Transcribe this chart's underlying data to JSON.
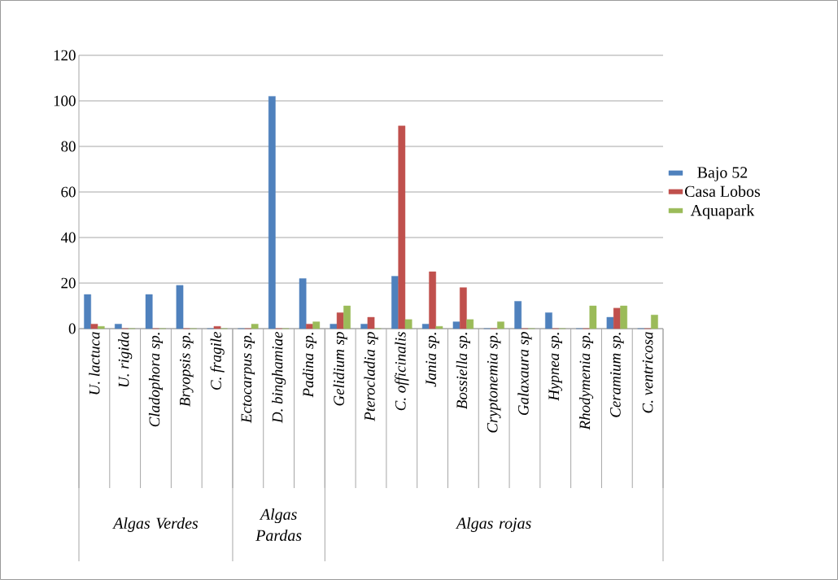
{
  "chart_data": {
    "type": "bar",
    "categories": [
      "U. lactuca",
      "U. rigida",
      "Cladophora sp.",
      "Bryopsis sp.",
      "C. fragile",
      "Ectocarpus sp.",
      "D. binghamiae",
      "Padina sp.",
      "Gelidium sp",
      "Pterocladia sp",
      "C. officinalis",
      "Jania sp.",
      "Bossiella sp.",
      "Cryptonemia sp.",
      "Galaxaura sp",
      "Hypnea sp.",
      "Rhodymenia sp.",
      "Ceramium sp.",
      "C. ventricosa"
    ],
    "series": [
      {
        "name": "Bajo 52",
        "color": "#4f81bd",
        "values": [
          15,
          2,
          15,
          19,
          0,
          0,
          102,
          22,
          2,
          2,
          23,
          2,
          3,
          0,
          12,
          7,
          0,
          5,
          0
        ]
      },
      {
        "name": "Casa Lobos",
        "color": "#c0504d",
        "values": [
          2,
          0,
          0,
          0,
          1,
          0,
          0,
          2,
          7,
          5,
          89,
          25,
          18,
          0,
          0,
          0,
          0,
          9,
          0
        ]
      },
      {
        "name": "Aquapark",
        "color": "#9bbb59",
        "values": [
          1,
          0,
          0,
          0,
          0,
          2,
          0,
          3,
          10,
          0,
          4,
          1,
          4,
          3,
          0,
          0,
          10,
          10,
          6
        ]
      }
    ],
    "annotations": [
      "Algas Verdes",
      "Algas Pardas",
      "Algas rojas"
    ],
    "ylim": [
      0,
      120
    ],
    "yticks": [
      0,
      20,
      40,
      60,
      80,
      100,
      120
    ],
    "grid": "y",
    "legend": "right"
  }
}
